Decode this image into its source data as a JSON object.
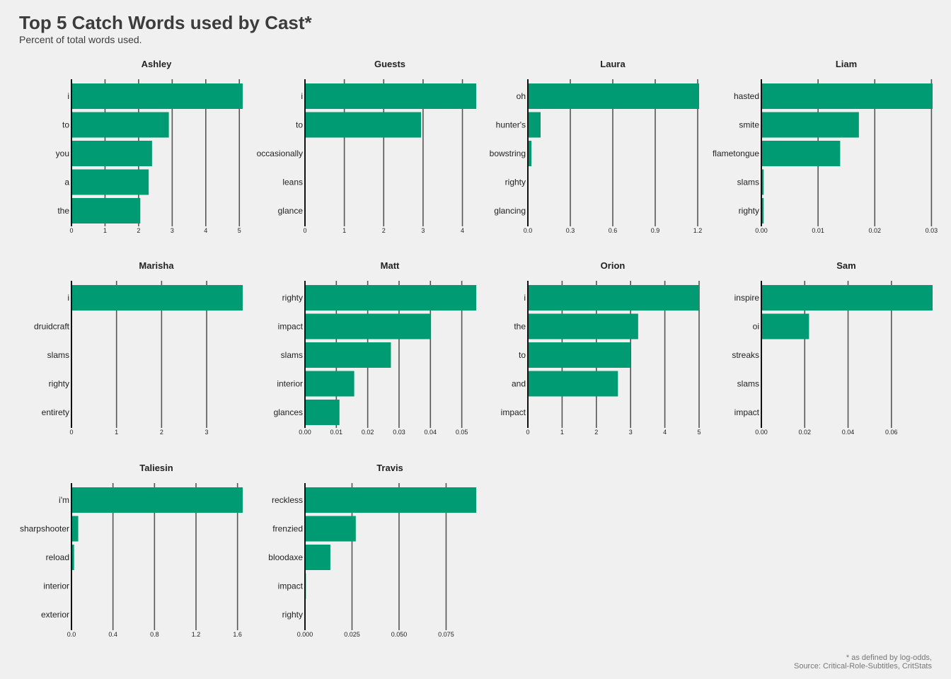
{
  "header": {
    "title": "Top 5 Catch Words used by Cast*",
    "subtitle": "Percent of total words used."
  },
  "caption": {
    "line1": "* as defined by log-odds,",
    "line2": "Source: Critical-Role-Subtitles, CritStats"
  },
  "colors": {
    "bar": "#009b72",
    "grid": "#555555",
    "axis": "#111111",
    "background": "#f0f0f0"
  },
  "chart_data": {
    "type": "bar",
    "orientation": "horizontal",
    "title": "Top 5 Catch Words used by Cast*",
    "subtitle": "Percent of total words used.",
    "facets": [
      {
        "name": "Ashley",
        "categories": [
          "i",
          "to",
          "you",
          "a",
          "the"
        ],
        "values": [
          5.1,
          2.9,
          2.4,
          2.3,
          2.05
        ],
        "ticks": [
          0,
          1,
          2,
          3,
          4,
          5
        ],
        "tick_labels": [
          "0",
          "1",
          "2",
          "3",
          "4",
          "5"
        ],
        "xlim": [
          0,
          5.1
        ]
      },
      {
        "name": "Guests",
        "categories": [
          "i",
          "to",
          "occasionally",
          "leans",
          "glance"
        ],
        "values": [
          4.35,
          2.95,
          0,
          0,
          0
        ],
        "ticks": [
          0,
          1,
          2,
          3,
          4
        ],
        "tick_labels": [
          "0",
          "1",
          "2",
          "3",
          "4"
        ],
        "xlim": [
          0,
          4.35
        ]
      },
      {
        "name": "Laura",
        "categories": [
          "oh",
          "hunter's",
          "bowstring",
          "righty",
          "glancing"
        ],
        "values": [
          1.21,
          0.09,
          0.025,
          0,
          0
        ],
        "ticks": [
          0,
          0.3,
          0.6,
          0.9,
          1.2
        ],
        "tick_labels": [
          "0.0",
          "0.3",
          "0.6",
          "0.9",
          "1.2"
        ],
        "xlim": [
          0,
          1.21
        ]
      },
      {
        "name": "Liam",
        "categories": [
          "hasted",
          "smite",
          "flametongue",
          "slams",
          "righty"
        ],
        "values": [
          0.0302,
          0.0172,
          0.0139,
          0.0004,
          0.0004
        ],
        "ticks": [
          0,
          0.01,
          0.02,
          0.03
        ],
        "tick_labels": [
          "0.00",
          "0.01",
          "0.02",
          "0.03"
        ],
        "xlim": [
          0,
          0.0302
        ]
      },
      {
        "name": "Marisha",
        "categories": [
          "i",
          "druidcraft",
          "slams",
          "righty",
          "entirety"
        ],
        "values": [
          3.8,
          0,
          0,
          0,
          0
        ],
        "ticks": [
          0,
          1,
          2,
          3
        ],
        "tick_labels": [
          "0",
          "1",
          "2",
          "3"
        ],
        "xlim": [
          0,
          3.8
        ]
      },
      {
        "name": "Matt",
        "categories": [
          "righty",
          "impact",
          "slams",
          "interior",
          "glances"
        ],
        "values": [
          0.0546,
          0.0401,
          0.0274,
          0.0157,
          0.011
        ],
        "ticks": [
          0,
          0.01,
          0.02,
          0.03,
          0.04,
          0.05
        ],
        "tick_labels": [
          "0.00",
          "0.01",
          "0.02",
          "0.03",
          "0.04",
          "0.05"
        ],
        "xlim": [
          0,
          0.0546
        ]
      },
      {
        "name": "Orion",
        "categories": [
          "i",
          "the",
          "to",
          "and",
          "impact"
        ],
        "values": [
          5.0,
          3.22,
          3.0,
          2.63,
          0
        ],
        "ticks": [
          0,
          1,
          2,
          3,
          4,
          5
        ],
        "tick_labels": [
          "0",
          "1",
          "2",
          "3",
          "4",
          "5"
        ],
        "xlim": [
          0,
          5.0
        ]
      },
      {
        "name": "Sam",
        "categories": [
          "inspire",
          "oi",
          "streaks",
          "slams",
          "impact"
        ],
        "values": [
          0.079,
          0.022,
          0,
          0,
          0
        ],
        "ticks": [
          0,
          0.02,
          0.04,
          0.06
        ],
        "tick_labels": [
          "0.00",
          "0.02",
          "0.04",
          "0.06"
        ],
        "xlim": [
          0,
          0.079
        ]
      },
      {
        "name": "Taliesin",
        "categories": [
          "i'm",
          "sharpshooter",
          "reload",
          "interior",
          "exterior"
        ],
        "values": [
          1.65,
          0.065,
          0.025,
          0,
          0
        ],
        "ticks": [
          0,
          0.4,
          0.8,
          1.2,
          1.6
        ],
        "tick_labels": [
          "0.0",
          "0.4",
          "0.8",
          "1.2",
          "1.6"
        ],
        "xlim": [
          0,
          1.65
        ]
      },
      {
        "name": "Travis",
        "categories": [
          "reckless",
          "frenzied",
          "bloodaxe",
          "impact",
          "righty"
        ],
        "values": [
          0.091,
          0.027,
          0.0135,
          0.0005,
          0
        ],
        "ticks": [
          0,
          0.025,
          0.05,
          0.075
        ],
        "tick_labels": [
          "0.000",
          "0.025",
          "0.050",
          "0.075"
        ],
        "xlim": [
          0,
          0.091
        ]
      }
    ]
  }
}
